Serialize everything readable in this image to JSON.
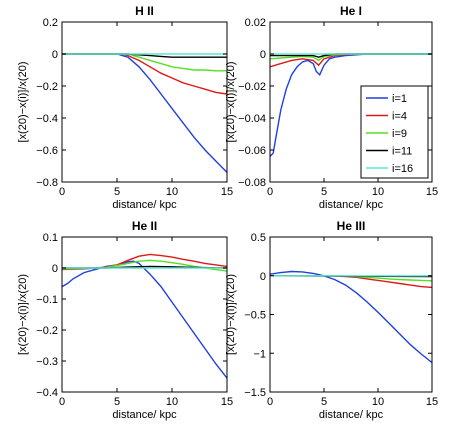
{
  "legend": {
    "entries": [
      {
        "label": "i=1",
        "color": "#1f3fe0"
      },
      {
        "label": "i=4",
        "color": "#e01818"
      },
      {
        "label": "i=9",
        "color": "#55e022"
      },
      {
        "label": "i=11",
        "color": "#000000"
      },
      {
        "label": "i=16",
        "color": "#5fe8d6"
      }
    ]
  },
  "chart_data": [
    {
      "type": "line",
      "title": "H II",
      "xlabel": "distance/ kpc",
      "ylabel": "[x(20)−x(i)]/x(20)",
      "xlim": [
        0,
        15
      ],
      "ylim": [
        -0.8,
        0.2
      ],
      "xticks": [
        0,
        5,
        10,
        15
      ],
      "yticks": [
        -0.8,
        -0.6,
        -0.4,
        -0.2,
        0,
        0.2
      ],
      "ytick_labels": [
        "−0.8",
        "−0.6",
        "−0.4",
        "−0.2",
        "0",
        "0.2"
      ],
      "series": [
        {
          "name": "i=1",
          "color": "#1f3fe0",
          "x": [
            0,
            5,
            6,
            7,
            8,
            9,
            10,
            11,
            12,
            13,
            14,
            15
          ],
          "y": [
            0,
            0,
            -0.02,
            -0.08,
            -0.16,
            -0.25,
            -0.34,
            -0.43,
            -0.52,
            -0.6,
            -0.67,
            -0.74
          ]
        },
        {
          "name": "i=4",
          "color": "#e01818",
          "x": [
            0,
            5.5,
            6,
            7,
            8,
            9,
            10,
            11,
            12,
            13,
            14,
            15
          ],
          "y": [
            0,
            0,
            -0.01,
            -0.04,
            -0.08,
            -0.12,
            -0.15,
            -0.18,
            -0.2,
            -0.22,
            -0.24,
            -0.25
          ]
        },
        {
          "name": "i=9",
          "color": "#55e022",
          "x": [
            0,
            6,
            7,
            8,
            9,
            10,
            11,
            12,
            13,
            14,
            15
          ],
          "y": [
            0,
            0,
            -0.02,
            -0.04,
            -0.06,
            -0.08,
            -0.09,
            -0.1,
            -0.1,
            -0.105,
            -0.105
          ]
        },
        {
          "name": "i=11",
          "color": "#000000",
          "x": [
            0,
            6,
            7,
            8,
            9,
            10,
            11,
            12,
            13,
            14,
            15
          ],
          "y": [
            0,
            0,
            -0.005,
            -0.01,
            -0.015,
            -0.02,
            -0.02,
            -0.02,
            -0.02,
            -0.02,
            -0.02
          ]
        },
        {
          "name": "i=16",
          "color": "#5fe8d6",
          "x": [
            0,
            15
          ],
          "y": [
            0,
            0
          ]
        }
      ]
    },
    {
      "type": "line",
      "title": "He I",
      "xlabel": "distance/ kpc",
      "ylabel": "[x(20)−x(i)]/x(20)",
      "xlim": [
        0,
        15
      ],
      "ylim": [
        -0.08,
        0.02
      ],
      "xticks": [
        0,
        5,
        10,
        15
      ],
      "yticks": [
        -0.08,
        -0.06,
        -0.04,
        -0.02,
        0,
        0.02
      ],
      "ytick_labels": [
        "−0.08",
        "−0.06",
        "−0.04",
        "−0.02",
        "0",
        "0.02"
      ],
      "series": [
        {
          "name": "i=1",
          "color": "#1f3fe0",
          "x": [
            0,
            0.3,
            0.6,
            1,
            1.5,
            2,
            2.5,
            3,
            3.5,
            4,
            4.3,
            4.6,
            5,
            5.5,
            6,
            7,
            8,
            9,
            10,
            11,
            12,
            13,
            14,
            15
          ],
          "y": [
            -0.064,
            -0.062,
            -0.05,
            -0.035,
            -0.022,
            -0.013,
            -0.008,
            -0.005,
            -0.004,
            -0.006,
            -0.011,
            -0.013,
            -0.007,
            -0.003,
            -0.002,
            -0.001,
            -0.0005,
            0,
            0,
            0,
            0,
            0,
            0,
            0
          ]
        },
        {
          "name": "i=4",
          "color": "#e01818",
          "x": [
            0,
            1,
            2,
            3,
            4,
            4.5,
            5,
            6,
            7,
            8,
            9,
            10,
            15
          ],
          "y": [
            -0.008,
            -0.006,
            -0.004,
            -0.003,
            -0.004,
            -0.007,
            -0.003,
            -0.001,
            -0.0005,
            0,
            0,
            0,
            0
          ]
        },
        {
          "name": "i=9",
          "color": "#55e022",
          "x": [
            0,
            1,
            2,
            3,
            4,
            4.5,
            5,
            6,
            7,
            8,
            15
          ],
          "y": [
            -0.003,
            -0.0025,
            -0.002,
            -0.0015,
            -0.002,
            -0.004,
            -0.0015,
            -0.0005,
            0,
            0,
            0
          ]
        },
        {
          "name": "i=11",
          "color": "#000000",
          "x": [
            0,
            2,
            4,
            4.5,
            5,
            6,
            15
          ],
          "y": [
            -0.001,
            -0.001,
            -0.001,
            -0.002,
            -0.001,
            0,
            0
          ]
        },
        {
          "name": "i=16",
          "color": "#5fe8d6",
          "x": [
            0,
            15
          ],
          "y": [
            0,
            0
          ]
        }
      ]
    },
    {
      "type": "line",
      "title": "He II",
      "xlabel": "distance/ kpc",
      "ylabel": "[x(20)−x(i)]/x(20)",
      "xlim": [
        0,
        15
      ],
      "ylim": [
        -0.4,
        0.1
      ],
      "xticks": [
        0,
        5,
        10,
        15
      ],
      "yticks": [
        -0.4,
        -0.3,
        -0.2,
        -0.1,
        0,
        0.1
      ],
      "ytick_labels": [
        "−0.4",
        "−0.3",
        "−0.2",
        "−0.1",
        "0",
        "0.1"
      ],
      "series": [
        {
          "name": "i=1",
          "color": "#1f3fe0",
          "x": [
            0,
            0.5,
            1,
            2,
            3,
            4,
            5,
            6,
            6.5,
            7,
            8,
            9,
            10,
            11,
            12,
            13,
            14,
            15
          ],
          "y": [
            -0.06,
            -0.05,
            -0.035,
            -0.015,
            -0.005,
            0.005,
            0.01,
            0.02,
            0.022,
            0.015,
            -0.02,
            -0.06,
            -0.11,
            -0.16,
            -0.21,
            -0.26,
            -0.31,
            -0.355
          ]
        },
        {
          "name": "i=4",
          "color": "#e01818",
          "x": [
            0,
            2,
            4,
            5,
            6,
            7,
            8,
            9,
            10,
            11,
            12,
            13,
            14,
            15
          ],
          "y": [
            -0.005,
            -0.003,
            0.003,
            0.01,
            0.025,
            0.038,
            0.044,
            0.04,
            0.035,
            0.028,
            0.022,
            0.015,
            0.01,
            0.005
          ]
        },
        {
          "name": "i=9",
          "color": "#55e022",
          "x": [
            0,
            2,
            4,
            5,
            6,
            7,
            8,
            9,
            10,
            11,
            12,
            13,
            14,
            15
          ],
          "y": [
            -0.003,
            -0.002,
            0.002,
            0.008,
            0.015,
            0.022,
            0.025,
            0.022,
            0.017,
            0.012,
            0.005,
            0,
            -0.005,
            -0.01
          ]
        },
        {
          "name": "i=11",
          "color": "#000000",
          "x": [
            0,
            4,
            6,
            8,
            10,
            12,
            15
          ],
          "y": [
            0,
            0,
            0.003,
            0.005,
            0.004,
            0.002,
            0
          ]
        },
        {
          "name": "i=16",
          "color": "#5fe8d6",
          "x": [
            0,
            15
          ],
          "y": [
            0,
            0
          ]
        }
      ]
    },
    {
      "type": "line",
      "title": "He III",
      "xlabel": "distance/ kpc",
      "ylabel": "[x(20)−x(i)]/x(20)",
      "xlim": [
        0,
        15
      ],
      "ylim": [
        -1.5,
        0.5
      ],
      "xticks": [
        0,
        5,
        10,
        15
      ],
      "yticks": [
        -1.5,
        -1,
        -0.5,
        0,
        0.5
      ],
      "ytick_labels": [
        "−1.5",
        "−1",
        "−0.5",
        "0",
        "0.5"
      ],
      "series": [
        {
          "name": "i=1",
          "color": "#1f3fe0",
          "x": [
            0,
            1,
            2,
            3,
            4,
            5,
            6,
            7,
            8,
            9,
            10,
            11,
            12,
            13,
            14,
            15
          ],
          "y": [
            0.02,
            0.04,
            0.055,
            0.05,
            0.03,
            0,
            -0.05,
            -0.12,
            -0.22,
            -0.34,
            -0.47,
            -0.61,
            -0.75,
            -0.89,
            -1.01,
            -1.12
          ]
        },
        {
          "name": "i=4",
          "color": "#e01818",
          "x": [
            0,
            6,
            7,
            8,
            9,
            10,
            11,
            12,
            13,
            14,
            15
          ],
          "y": [
            0,
            0,
            -0.01,
            -0.02,
            -0.04,
            -0.06,
            -0.08,
            -0.1,
            -0.12,
            -0.14,
            -0.15
          ]
        },
        {
          "name": "i=9",
          "color": "#55e022",
          "x": [
            0,
            6,
            7,
            8,
            9,
            10,
            11,
            12,
            13,
            14,
            15
          ],
          "y": [
            0,
            0,
            -0.005,
            -0.01,
            -0.02,
            -0.03,
            -0.04,
            -0.05,
            -0.055,
            -0.06,
            -0.065
          ]
        },
        {
          "name": "i=11",
          "color": "#000000",
          "x": [
            0,
            15
          ],
          "y": [
            0,
            -0.01
          ]
        },
        {
          "name": "i=16",
          "color": "#5fe8d6",
          "x": [
            0,
            15
          ],
          "y": [
            0,
            0
          ]
        }
      ]
    }
  ]
}
